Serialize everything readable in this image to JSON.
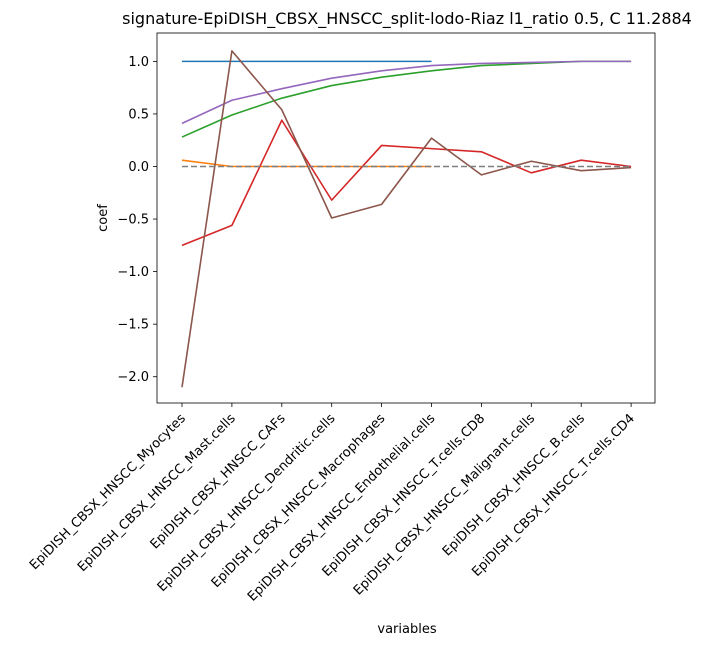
{
  "chart_data": {
    "type": "line",
    "title": "signature-EpiDISH_CBSX_HNSCC_split-lodo-Riaz l1_ratio 0.5, C 11.2884",
    "xlabel": "variables",
    "ylabel": "coef",
    "categories": [
      "EpiDISH_CBSX_HNSCC_Myocytes",
      "EpiDISH_CBSX_HNSCC_Mast.cells",
      "EpiDISH_CBSX_HNSCC_CAFs",
      "EpiDISH_CBSX_HNSCC_Dendritic.cells",
      "EpiDISH_CBSX_HNSCC_Macrophages",
      "EpiDISH_CBSX_HNSCC_Endothelial.cells",
      "EpiDISH_CBSX_HNSCC_T.cells.CD8",
      "EpiDISH_CBSX_HNSCC_Malignant.cells",
      "EpiDISH_CBSX_HNSCC_B.cells",
      "EpiDISH_CBSX_HNSCC_T.cells.CD4"
    ],
    "ylim": [
      -2.25,
      1.27
    ],
    "yticks": [
      -2.0,
      -1.5,
      -1.0,
      -0.5,
      0.0,
      0.5,
      1.0
    ],
    "ytick_labels": [
      "−2.0",
      "−1.5",
      "−1.0",
      "−0.5",
      "0.0",
      "0.5",
      "1.0"
    ],
    "grid": false,
    "series": [
      {
        "color": "#1f77b4",
        "dashed": false,
        "values": [
          1.0,
          1.0,
          1.0,
          1.0,
          1.0,
          1.0,
          null,
          null,
          null,
          null
        ]
      },
      {
        "color": "#ff7f0e",
        "dashed": false,
        "values": [
          0.06,
          0.0,
          0.0,
          0.0,
          0.0,
          0.0,
          null,
          null,
          null,
          null
        ]
      },
      {
        "color": "#2ca02c",
        "dashed": false,
        "values": [
          0.28,
          0.49,
          0.65,
          0.77,
          0.85,
          0.91,
          0.96,
          0.98,
          1.0,
          1.0
        ]
      },
      {
        "color": "#d62728",
        "dashed": false,
        "values": [
          -0.75,
          -0.56,
          0.44,
          -0.32,
          0.2,
          0.17,
          0.14,
          -0.06,
          0.06,
          0.0
        ]
      },
      {
        "color": "#9467bd",
        "dashed": false,
        "values": [
          0.41,
          0.63,
          0.74,
          0.84,
          0.91,
          0.96,
          0.98,
          0.99,
          1.0,
          1.0
        ]
      },
      {
        "color": "#8c564b",
        "dashed": false,
        "values": [
          -2.1,
          1.1,
          0.54,
          -0.49,
          -0.36,
          0.27,
          -0.08,
          0.05,
          -0.04,
          -0.01
        ]
      },
      {
        "color": "#7f7f7f",
        "dashed": true,
        "values": [
          0,
          0,
          0,
          0,
          0,
          0,
          0,
          0,
          0,
          0
        ]
      }
    ]
  }
}
